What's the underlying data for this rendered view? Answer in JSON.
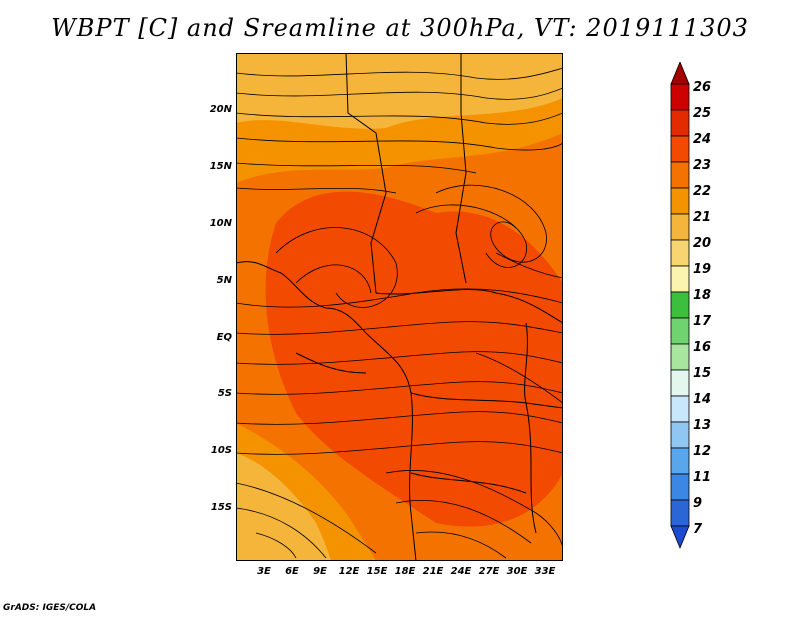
{
  "title": "WBPT [C] and Sreamline at 300hPa, VT: 2019111303",
  "footer": "GrADS: IGES/COLA",
  "map": {
    "lat_labels": [
      "20N",
      "15N",
      "10N",
      "5N",
      "EQ",
      "5S",
      "10S",
      "15S"
    ],
    "lon_labels": [
      "3E",
      "6E",
      "9E",
      "12E",
      "15E",
      "18E",
      "21E",
      "24E",
      "27E",
      "30E",
      "33E"
    ],
    "lon_range": [
      0,
      35
    ],
    "lat_range": [
      -20,
      25
    ]
  },
  "colorbar": {
    "labels": [
      "26",
      "25",
      "24",
      "23",
      "22",
      "21",
      "20",
      "19",
      "18",
      "17",
      "16",
      "15",
      "14",
      "13",
      "12",
      "11",
      "9",
      "7"
    ],
    "colors": [
      "#a50000",
      "#cc0000",
      "#e42a00",
      "#f24a00",
      "#f47200",
      "#f49200",
      "#f5b43a",
      "#f7d672",
      "#fbf4b0",
      "#3cbf3c",
      "#6fd46f",
      "#a8e6a0",
      "#e4f7ee",
      "#c8e7fa",
      "#8fc6f2",
      "#5aa6ec",
      "#3c86e4",
      "#2a66d6",
      "#1c4ad0"
    ]
  },
  "field_colors": {
    "c20": "#f5b43a",
    "c21": "#f49200",
    "c22": "#f47200",
    "c23": "#f24a00"
  }
}
